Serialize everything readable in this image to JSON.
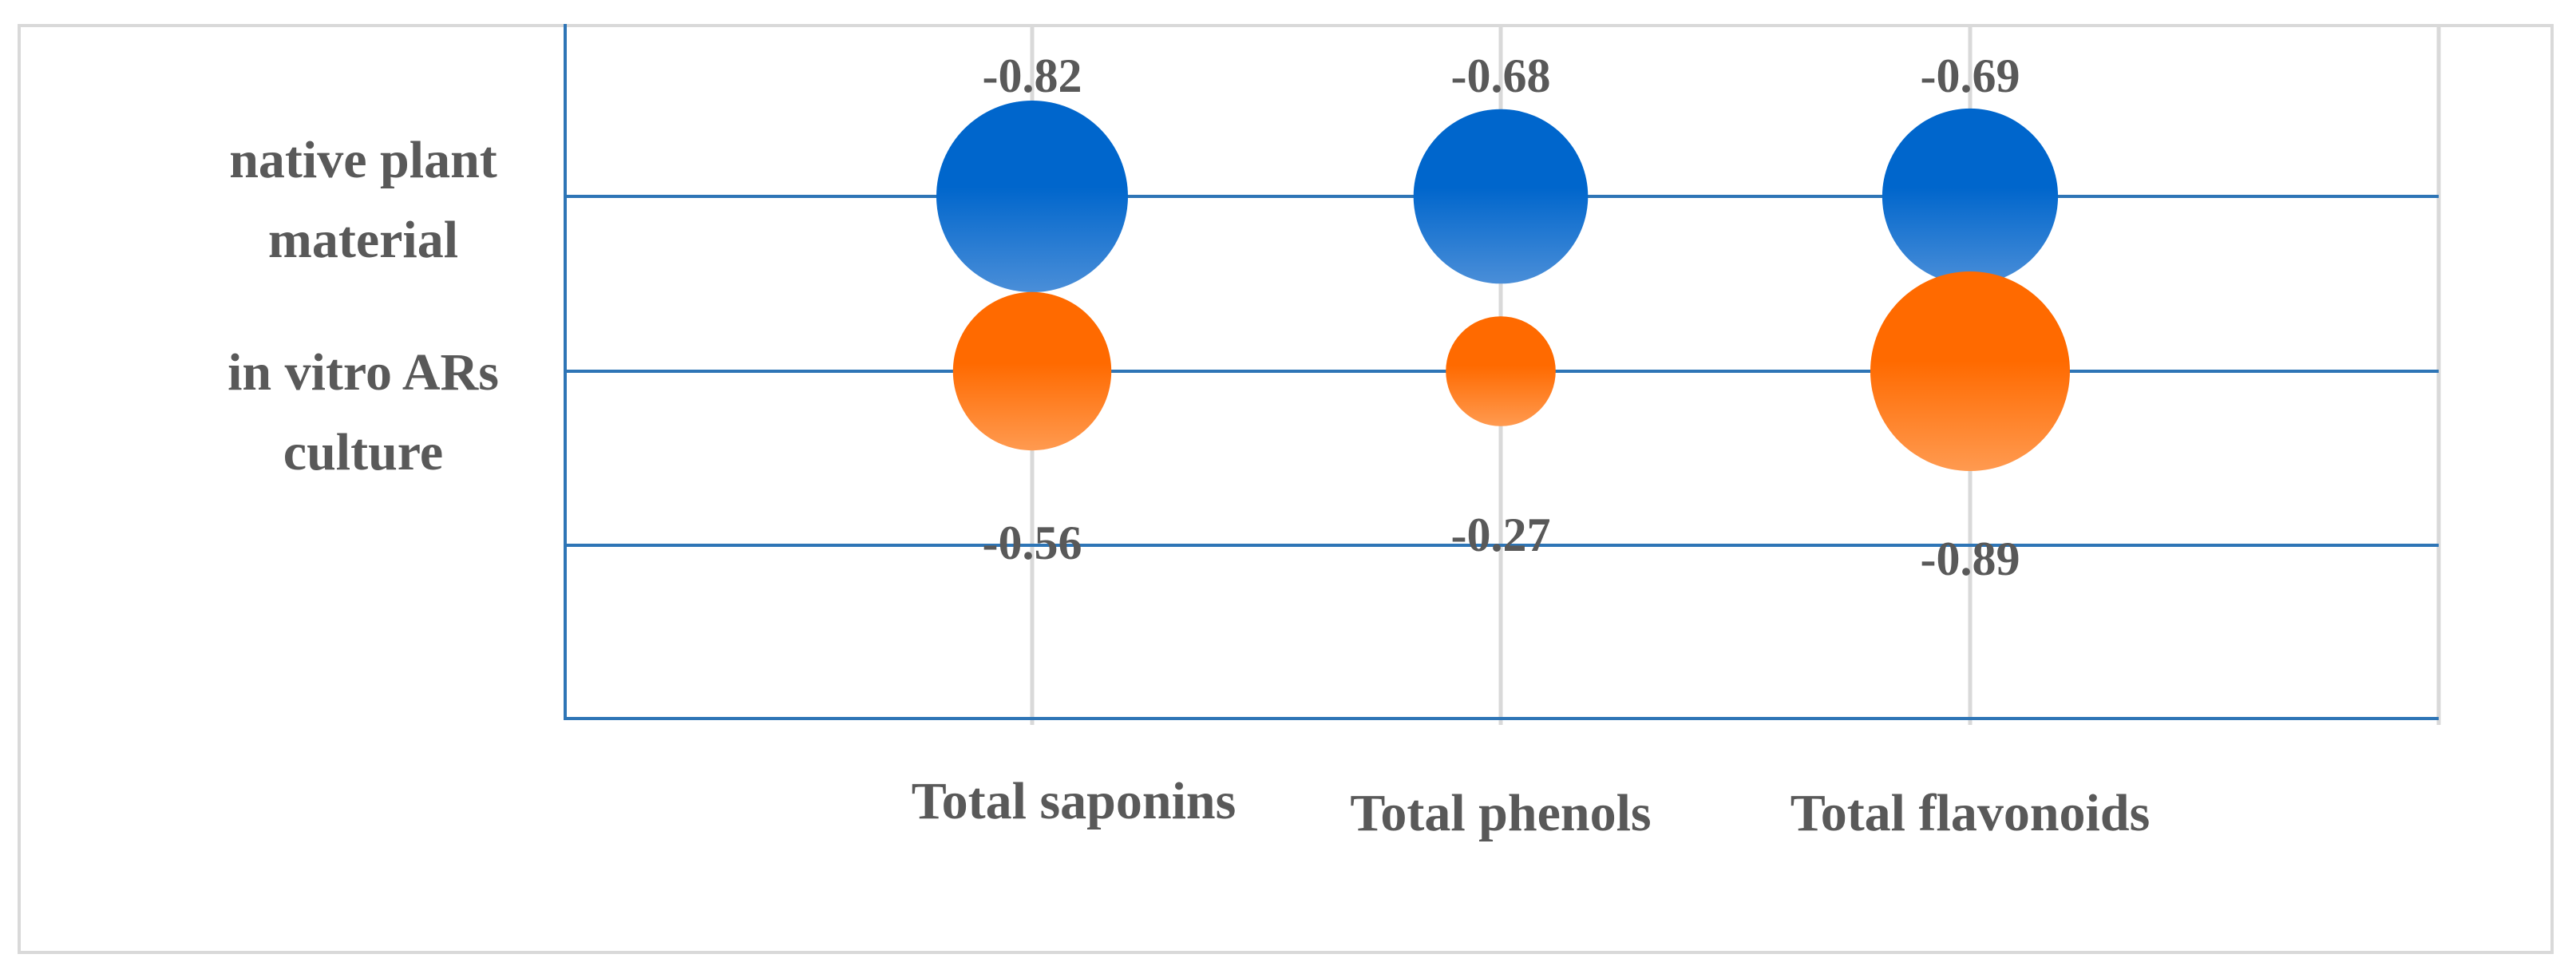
{
  "chart_data": {
    "type": "bubble",
    "categories": [
      "Total saponins",
      "Total phenols",
      "Total flavonoids"
    ],
    "rows": [
      "native plant material",
      "in vitro ARs culture"
    ],
    "row_label_lines": [
      [
        "native plant",
        "material"
      ],
      [
        "in vitro ARs",
        "culture"
      ]
    ],
    "series": [
      {
        "name": "native plant material",
        "values": [
          -0.82,
          -0.68,
          -0.69
        ],
        "labels": [
          "-0.82",
          "-0.68",
          "-0.69"
        ],
        "color": "#0066cc",
        "label_position": "above"
      },
      {
        "name": "in vitro ARs culture",
        "values": [
          -0.56,
          -0.27,
          -0.89
        ],
        "labels": [
          "-0.56",
          "-0.27",
          "-0.89"
        ],
        "color": "#ff6a00",
        "label_position": "below"
      }
    ],
    "grid": true,
    "legend": "none",
    "colors": {
      "grid_h": "#2e75b6",
      "grid_v": "#d9d9d9",
      "frame": "#d9d9d9",
      "text": "#595959"
    }
  }
}
